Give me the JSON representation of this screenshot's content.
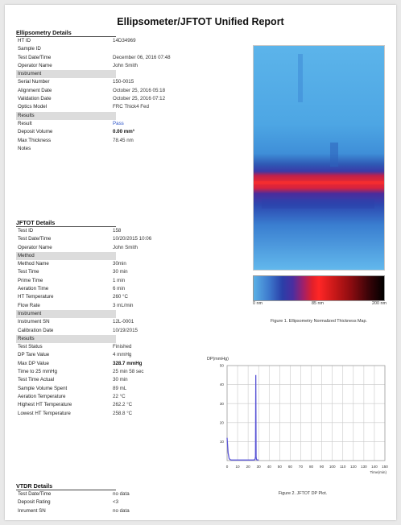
{
  "report": {
    "title": "Ellipsometer/JFTOT Unified Report"
  },
  "ellipsometry": {
    "title": "Ellipsometry Details",
    "rows_top": [
      {
        "label": "HT ID",
        "value": "14D34969"
      },
      {
        "label": "Sample ID",
        "value": ""
      },
      {
        "label": "Test Date/Time",
        "value": "December 06, 2016 07:48"
      },
      {
        "label": "Operator Name",
        "value": "John Smith"
      }
    ],
    "instrument_header": "Instrument",
    "rows_instrument": [
      {
        "label": "Serial Number",
        "value": "150-0015"
      },
      {
        "label": "Alignment Date",
        "value": "October 25, 2016 05:18"
      },
      {
        "label": "Validation Date",
        "value": "October 25, 2016 07:12"
      },
      {
        "label": "Optics Model",
        "value": "FRC Thick4 Fed"
      }
    ],
    "results_header": "Results",
    "rows_results": [
      {
        "label": "Result",
        "value": "Pass"
      },
      {
        "label": "Deposit Volume",
        "value": "0.00 mm³"
      },
      {
        "label": "Max Thickness",
        "value": "78.45 nm"
      },
      {
        "label": "Notes",
        "value": ""
      }
    ]
  },
  "jftot": {
    "title": "JFTOT Details",
    "rows_top": [
      {
        "label": "Test ID",
        "value": "158"
      },
      {
        "label": "Test Date/Time",
        "value": "10/20/2015 10:06"
      },
      {
        "label": "Operator Name",
        "value": "John Smith"
      }
    ],
    "method_header": "Method",
    "rows_method": [
      {
        "label": "Method Name",
        "value": "30min"
      },
      {
        "label": "Test Time",
        "value": "30 min"
      },
      {
        "label": "Prime Time",
        "value": "1 min"
      },
      {
        "label": "Aeration Time",
        "value": "6 min"
      },
      {
        "label": "HT Temperature",
        "value": "260 °C"
      },
      {
        "label": "Flow Rate",
        "value": "3 mL/min"
      }
    ],
    "instrument_header": "Instrument",
    "rows_instrument": [
      {
        "label": "Instrument SN",
        "value": "12L-0001"
      },
      {
        "label": "Calibration Date",
        "value": "10/19/2015"
      }
    ],
    "results_header": "Results",
    "rows_results": [
      {
        "label": "Test Status",
        "value": "Finished"
      },
      {
        "label": "DP Tare Value",
        "value": "4 mmHg"
      },
      {
        "label": "Max DP Value",
        "value": "328.7 mmHg"
      },
      {
        "label": "Time to 25 mmHg",
        "value": "25 min 58 sec"
      },
      {
        "label": "Test Time Actual",
        "value": "30 min"
      },
      {
        "label": "Sample Volume Spent",
        "value": "89 mL"
      },
      {
        "label": "Aeration Temperature",
        "value": "22 °C"
      },
      {
        "label": "Highest HT Temperature",
        "value": "262.2 °C"
      },
      {
        "label": "Lowest HT Temperature",
        "value": "258.8 °C"
      }
    ]
  },
  "vtdr": {
    "title": "VTDR Details",
    "rows": [
      {
        "label": "Test Date/Time",
        "value": "no data"
      },
      {
        "label": "Deposit Rating",
        "value": "<3"
      },
      {
        "label": "Inrument SN",
        "value": "no data"
      }
    ]
  },
  "figure1": {
    "caption": "Figure 1. Ellipsometry Normalized Thickness Map.",
    "colorbar_ticks": [
      "0 nm",
      "85 nm",
      "200 nm"
    ],
    "colors": {
      "background_blue": "#4a9fe0",
      "band_red": "#e8222c",
      "band_dark_blue": "#2a3fa8"
    }
  },
  "figure2": {
    "caption": "Figure 2. JFTOT DP Plot.",
    "line_color": "#5a55d6"
  },
  "chart_data": {
    "type": "line",
    "title": "",
    "xlabel": "Time(min)",
    "ylabel": "DP(mmHg)",
    "xlim": [
      0,
      150
    ],
    "ylim": [
      0,
      50
    ],
    "x_ticks": [
      0,
      10,
      20,
      30,
      40,
      50,
      60,
      70,
      80,
      90,
      100,
      110,
      120,
      130,
      140,
      150
    ],
    "y_ticks": [
      0,
      10,
      20,
      30,
      40,
      50
    ],
    "x_tick_labels": [
      "0",
      "10",
      "20",
      "30",
      "40",
      "50",
      "60",
      "70",
      "80",
      "90",
      "100",
      "110",
      "120",
      "130",
      "140",
      "150"
    ],
    "y_tick_labels": [
      "",
      "10",
      "20",
      "30",
      "40",
      "50"
    ],
    "grid": true,
    "series": [
      {
        "x": [
          0,
          1,
          2,
          3,
          4,
          6,
          10,
          15,
          20,
          25,
          26.5,
          27,
          27.3,
          27.6,
          28,
          29,
          30
        ],
        "y": [
          12,
          4,
          1,
          0.5,
          0.3,
          0.3,
          0.3,
          0.3,
          0.3,
          0.3,
          0.5,
          2,
          45,
          2,
          0.5,
          0.3,
          0.3
        ]
      }
    ]
  }
}
